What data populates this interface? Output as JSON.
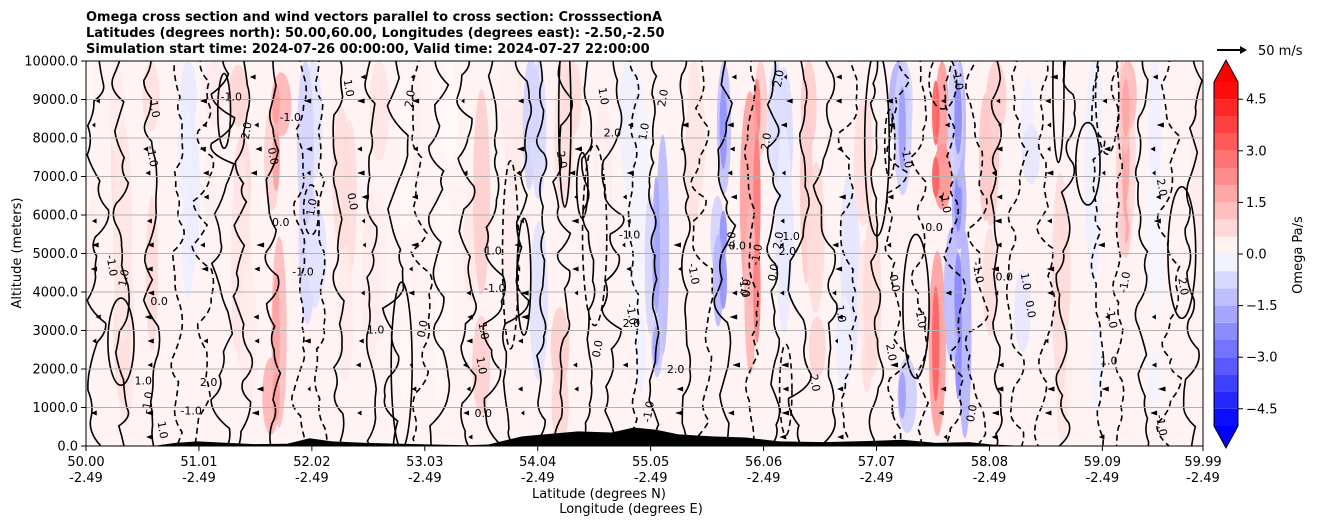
{
  "chart_data": {
    "type": "heatmap",
    "title_lines": [
      "Omega cross section and wind vectors parallel to cross section: CrosssectionA",
      "Latitudes (degrees north): 50.00,60.00, Longitudes (degrees east): -2.50,-2.50",
      "Simulation start time: 2024-07-26 00:00:00, Valid time: 2024-07-27 22:00:00"
    ],
    "ylabel": "Altitude (meters)",
    "xlabel_line1": "Latitude (degrees N)",
    "xlabel_line2": "Longitude (degrees E)",
    "ylim": [
      0,
      10000
    ],
    "y_ticks": [
      "0.0",
      "1000.0",
      "2000.0",
      "3000.0",
      "4000.0",
      "5000.0",
      "6000.0",
      "7000.0",
      "8000.0",
      "9000.0",
      "10000.0"
    ],
    "y_tick_values": [
      0,
      1000,
      2000,
      3000,
      4000,
      5000,
      6000,
      7000,
      8000,
      9000,
      10000
    ],
    "xlim": [
      50.0,
      59.99
    ],
    "x_ticks": [
      {
        "lat": "50.00",
        "lon": "-2.49",
        "value": 50.0
      },
      {
        "lat": "51.01",
        "lon": "-2.49",
        "value": 51.01
      },
      {
        "lat": "52.02",
        "lon": "-2.49",
        "value": 52.02
      },
      {
        "lat": "53.03",
        "lon": "-2.49",
        "value": 53.03
      },
      {
        "lat": "54.04",
        "lon": "-2.49",
        "value": 54.04
      },
      {
        "lat": "55.05",
        "lon": "-2.49",
        "value": 55.05
      },
      {
        "lat": "56.06",
        "lon": "-2.49",
        "value": 56.06
      },
      {
        "lat": "57.07",
        "lon": "-2.49",
        "value": 57.07
      },
      {
        "lat": "58.08",
        "lon": "-2.49",
        "value": 58.08
      },
      {
        "lat": "59.09",
        "lon": "-2.49",
        "value": 59.09
      },
      {
        "lat": "59.99",
        "lon": "-2.49",
        "value": 59.99
      }
    ],
    "grid": "horizontal",
    "colorbar": {
      "label": "Omega Pa/s",
      "range": [
        -5.0,
        5.0
      ],
      "ticks": [
        "4.5",
        "3.0",
        "1.5",
        "0.0",
        "−1.5",
        "−3.0",
        "−4.5"
      ],
      "tick_values": [
        4.5,
        3.0,
        1.5,
        0.0,
        -1.5,
        -3.0,
        -4.5
      ],
      "cmap": "bwr",
      "extend": "both"
    },
    "quiver_key": {
      "label": "50 m/s",
      "value": 50
    },
    "contour_label_values": [
      "0.0",
      "1.0",
      "-1.0",
      "2.0"
    ],
    "omega_bands": [
      {
        "lat": 50.0,
        "omega": 0.3
      },
      {
        "lat": 50.3,
        "omega": 0.6
      },
      {
        "lat": 50.6,
        "omega": 0.9
      },
      {
        "lat": 50.9,
        "omega": -0.4
      },
      {
        "lat": 51.1,
        "omega": 0.4
      },
      {
        "lat": 51.4,
        "omega": 0.8
      },
      {
        "lat": 51.7,
        "omega": 1.4
      },
      {
        "lat": 52.0,
        "omega": -0.8
      },
      {
        "lat": 52.3,
        "omega": 0.7
      },
      {
        "lat": 52.6,
        "omega": 0.5
      },
      {
        "lat": 52.9,
        "omega": 0.3
      },
      {
        "lat": 53.2,
        "omega": 0.2
      },
      {
        "lat": 53.5,
        "omega": 0.9
      },
      {
        "lat": 53.8,
        "omega": 0.5
      },
      {
        "lat": 54.0,
        "omega": -0.9
      },
      {
        "lat": 54.3,
        "omega": 1.1
      },
      {
        "lat": 54.6,
        "omega": 0.4
      },
      {
        "lat": 54.9,
        "omega": -0.3
      },
      {
        "lat": 55.1,
        "omega": -1.3
      },
      {
        "lat": 55.4,
        "omega": 0.6
      },
      {
        "lat": 55.7,
        "omega": -1.6
      },
      {
        "lat": 56.0,
        "omega": 1.9
      },
      {
        "lat": 56.2,
        "omega": -0.7
      },
      {
        "lat": 56.5,
        "omega": 1.0
      },
      {
        "lat": 56.8,
        "omega": -0.6
      },
      {
        "lat": 57.0,
        "omega": 0.8
      },
      {
        "lat": 57.3,
        "omega": -1.4
      },
      {
        "lat": 57.6,
        "omega": 2.3
      },
      {
        "lat": 57.8,
        "omega": -1.7
      },
      {
        "lat": 58.1,
        "omega": 1.2
      },
      {
        "lat": 58.4,
        "omega": -0.5
      },
      {
        "lat": 58.7,
        "omega": 0.6
      },
      {
        "lat": 59.0,
        "omega": -0.4
      },
      {
        "lat": 59.3,
        "omega": 1.3
      },
      {
        "lat": 59.6,
        "omega": -0.3
      },
      {
        "lat": 59.99,
        "omega": 0.4
      }
    ],
    "colors": {
      "grid": "#b0b0b0",
      "contour": "#000000",
      "terrain": "#000000"
    }
  }
}
